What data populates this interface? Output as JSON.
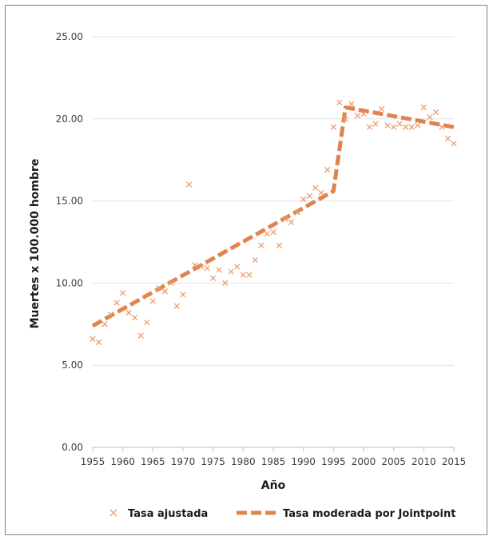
{
  "chart_data": {
    "type": "line",
    "xlabel": "Año",
    "ylabel": "Muertes x 100.000 hombre",
    "xlim": [
      1955,
      2015
    ],
    "ylim": [
      0,
      25
    ],
    "x_ticks": [
      "1955",
      "1960",
      "1965",
      "1970",
      "1975",
      "1980",
      "1985",
      "1990",
      "1995",
      "2000",
      "2005",
      "2010",
      "2015"
    ],
    "y_ticks": [
      "0.00",
      "5.00",
      "10.00",
      "15.00",
      "20.00",
      "25.00"
    ],
    "grid": "horizontal",
    "legend_position": "bottom",
    "colors": {
      "marker": "#ED9E6F",
      "trend": "#E0834E",
      "grid": "#e3e3e3",
      "axis": "#bfbfbf"
    },
    "series": [
      {
        "name": "Tasa ajustada",
        "style": "x-marker",
        "x": [
          1955,
          1956,
          1957,
          1958,
          1959,
          1960,
          1961,
          1962,
          1963,
          1964,
          1965,
          1966,
          1967,
          1968,
          1969,
          1970,
          1971,
          1972,
          1973,
          1974,
          1975,
          1976,
          1977,
          1978,
          1979,
          1980,
          1981,
          1982,
          1983,
          1984,
          1985,
          1986,
          1987,
          1988,
          1989,
          1990,
          1991,
          1992,
          1993,
          1994,
          1995,
          1996,
          1997,
          1998,
          1999,
          2000,
          2001,
          2002,
          2003,
          2004,
          2005,
          2006,
          2007,
          2008,
          2009,
          2010,
          2011,
          2012,
          2013,
          2014,
          2015
        ],
        "y": [
          6.6,
          6.4,
          7.5,
          8.1,
          8.8,
          9.4,
          8.2,
          7.9,
          6.8,
          7.6,
          8.9,
          9.7,
          9.5,
          10.0,
          8.6,
          9.3,
          16.0,
          11.1,
          11.0,
          10.9,
          10.3,
          10.8,
          10.0,
          10.7,
          11.0,
          10.5,
          10.5,
          11.4,
          12.3,
          13.0,
          13.1,
          12.3,
          13.9,
          13.7,
          14.3,
          15.1,
          15.3,
          15.8,
          15.5,
          16.9,
          19.5,
          21.0,
          20.0,
          20.9,
          20.2,
          20.3,
          19.5,
          19.7,
          20.6,
          19.6,
          19.5,
          19.7,
          19.5,
          19.5,
          19.6,
          20.7,
          20.1,
          20.4,
          19.5,
          18.8,
          18.5
        ]
      },
      {
        "name": "Tasa moderada por Jointpoint",
        "style": "dashed-line",
        "x": [
          1955,
          1995,
          1997,
          2015
        ],
        "y": [
          7.4,
          15.6,
          20.7,
          19.5
        ]
      }
    ]
  }
}
